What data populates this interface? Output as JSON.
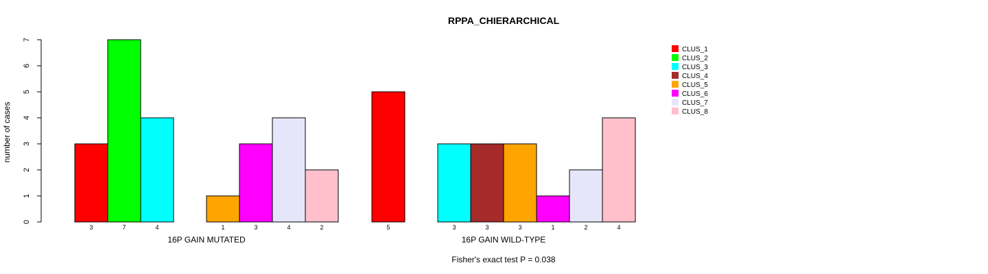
{
  "chart_data": {
    "type": "bar",
    "title": "RPPA_CHIERARCHICAL",
    "ylabel": "number of cases",
    "ylim": [
      0,
      7
    ],
    "yticks": [
      "0",
      "1",
      "2",
      "3",
      "4",
      "5",
      "6",
      "7"
    ],
    "groups": [
      "16P GAIN MUTATED",
      "16P GAIN WILD-TYPE"
    ],
    "series": [
      {
        "name": "CLUS_1",
        "color": "#ff0000",
        "values": [
          3,
          5
        ]
      },
      {
        "name": "CLUS_2",
        "color": "#00ff00",
        "values": [
          7,
          0
        ]
      },
      {
        "name": "CLUS_3",
        "color": "#00ffff",
        "values": [
          4,
          3
        ]
      },
      {
        "name": "CLUS_4",
        "color": "#a52a2a",
        "values": [
          0,
          3
        ]
      },
      {
        "name": "CLUS_5",
        "color": "#ffa500",
        "values": [
          1,
          3
        ]
      },
      {
        "name": "CLUS_6",
        "color": "#ff00ff",
        "values": [
          3,
          1
        ]
      },
      {
        "name": "CLUS_7",
        "color": "#e6e6fa",
        "values": [
          4,
          2
        ]
      },
      {
        "name": "CLUS_8",
        "color": "#ffc0cb",
        "values": [
          2,
          4
        ]
      }
    ],
    "count_labels": [
      [
        "3",
        "7",
        "4",
        "",
        "1",
        "3",
        "4",
        "2"
      ],
      [
        "5",
        "",
        "3",
        "3",
        "3",
        "1",
        "2",
        "4"
      ]
    ],
    "legend_position": "top-right",
    "footnote": "Fisher's exact test P = 0.038"
  }
}
